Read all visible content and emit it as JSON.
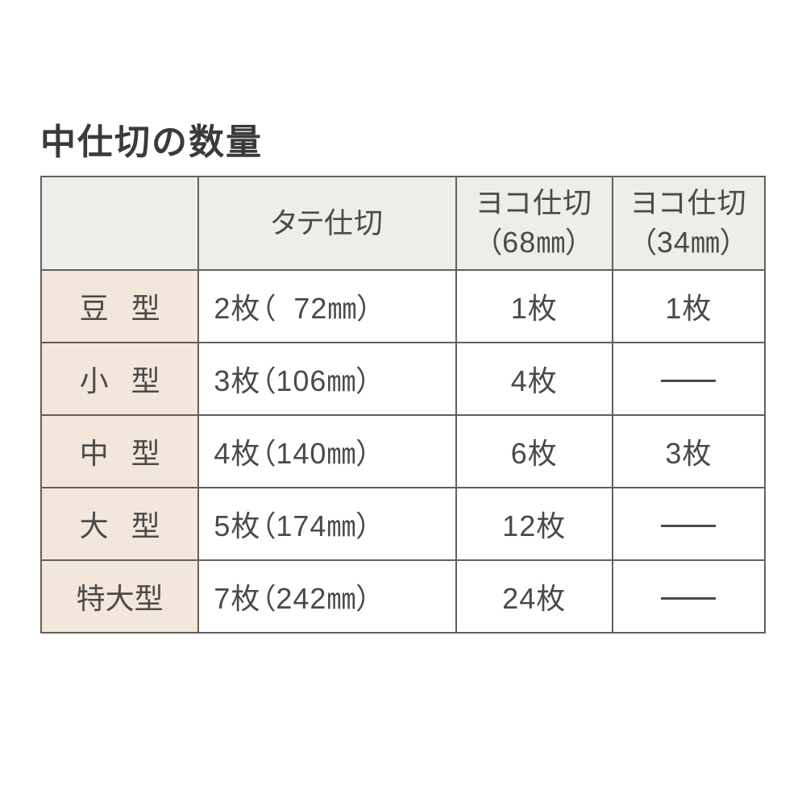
{
  "title": "中仕切の数量",
  "table": {
    "header_bg": "#eeedea",
    "rowhead_bg": "#f3e6db",
    "border_color": "#60605e",
    "text_color": "#4a4a48",
    "font_size_pt": 27,
    "columns": [
      {
        "label": "",
        "sub": ""
      },
      {
        "label": "タテ仕切",
        "sub": ""
      },
      {
        "label": "ヨコ仕切",
        "sub": "（68㎜）"
      },
      {
        "label": "ヨコ仕切",
        "sub": "（34㎜）"
      }
    ],
    "rows": [
      {
        "name_display": "豆　型",
        "name_spaced": true,
        "tate": "2枚（  72㎜）",
        "yoko68": "1枚",
        "yoko34": "1枚"
      },
      {
        "name_display": "小　型",
        "name_spaced": true,
        "tate": "3枚（106㎜）",
        "yoko68": "4枚",
        "yoko34": "—"
      },
      {
        "name_display": "中　型",
        "name_spaced": true,
        "tate": "4枚（140㎜）",
        "yoko68": "6枚",
        "yoko34": "3枚"
      },
      {
        "name_display": "大　型",
        "name_spaced": true,
        "tate": "5枚（174㎜）",
        "yoko68": "12枚",
        "yoko34": "—"
      },
      {
        "name_display": "特大型",
        "name_spaced": false,
        "tate": "7枚（242㎜）",
        "yoko68": "24枚",
        "yoko34": "—"
      }
    ]
  }
}
